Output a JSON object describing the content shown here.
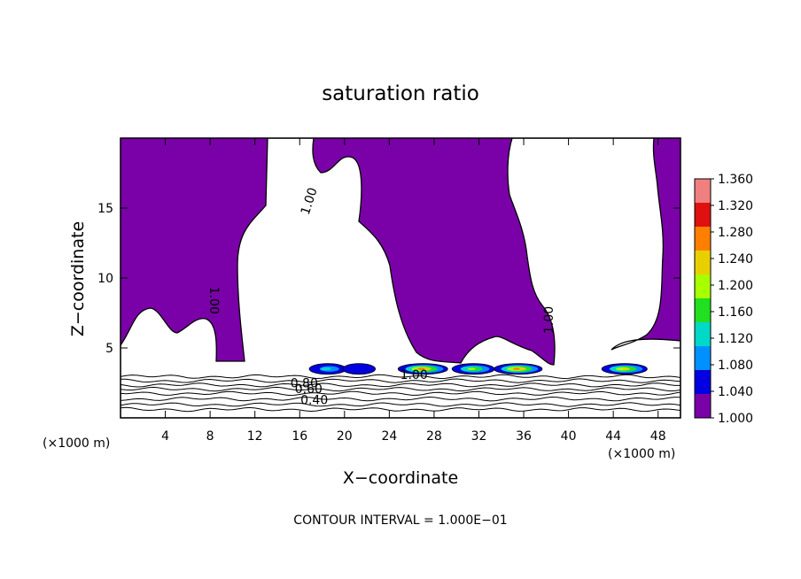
{
  "chart_data": {
    "type": "heatmap",
    "title": "saturation ratio",
    "xlabel": "X−coordinate",
    "ylabel": "Z−coordinate",
    "x_unit_left": "(×1000 m)",
    "x_unit_right": "(×1000 m)",
    "footer": "CONTOUR INTERVAL = 1.000E−01",
    "xlim": [
      0,
      50
    ],
    "ylim": [
      0,
      20
    ],
    "x_ticks": [
      4,
      8,
      12,
      16,
      20,
      24,
      28,
      32,
      36,
      40,
      44,
      48
    ],
    "x_tick_labels": [
      "4",
      "8",
      "12",
      "16",
      "20",
      "24",
      "28",
      "32",
      "36",
      "40",
      "44",
      "48"
    ],
    "y_ticks": [
      5,
      10,
      15
    ],
    "y_tick_labels": [
      "5",
      "10",
      "15"
    ],
    "colorbar": {
      "range": [
        1.0,
        1.36
      ],
      "labels": [
        "1.360",
        "1.320",
        "1.280",
        "1.240",
        "1.200",
        "1.160",
        "1.120",
        "1.080",
        "1.040",
        "1.000"
      ],
      "colors": [
        "#f08080",
        "#e01010",
        "#ff7f00",
        "#e8d000",
        "#a8ff00",
        "#20e020",
        "#00d8c8",
        "#0090ff",
        "#0000e0",
        "#7a00a8"
      ]
    },
    "fill_color_saturated": "#7a00a8",
    "contour_labels": [
      {
        "text": "1.00",
        "x": 16.8,
        "y": 15.5,
        "rotation": -72
      },
      {
        "text": "1.00",
        "x": 8.4,
        "y": 8.4,
        "rotation": 90
      },
      {
        "text": "1.00",
        "x": 38.2,
        "y": 7.0,
        "rotation": -90
      },
      {
        "text": "1.00",
        "x": 26.2,
        "y": 3.1,
        "rotation": 0
      },
      {
        "text": "0.80",
        "x": 16.4,
        "y": 2.5,
        "rotation": 0
      },
      {
        "text": "0.60",
        "x": 16.8,
        "y": 2.1,
        "rotation": 0
      },
      {
        "text": "0.40",
        "x": 17.3,
        "y": 1.3,
        "rotation": 0
      }
    ],
    "subsaturated_contour_levels_y": [
      2.95,
      2.65,
      2.35,
      2.05,
      1.75,
      1.35,
      0.95,
      0.6
    ],
    "supersaturated_patches": [
      {
        "x": 18.5,
        "y": 3.5,
        "peak": 1.12
      },
      {
        "x": 21.3,
        "y": 3.5,
        "peak": 1.06
      },
      {
        "x": 27.0,
        "y": 3.5,
        "peak": 1.3
      },
      {
        "x": 31.5,
        "y": 3.5,
        "peak": 1.2
      },
      {
        "x": 35.5,
        "y": 3.5,
        "peak": 1.28
      },
      {
        "x": 45.0,
        "y": 3.5,
        "peak": 1.24
      }
    ]
  }
}
